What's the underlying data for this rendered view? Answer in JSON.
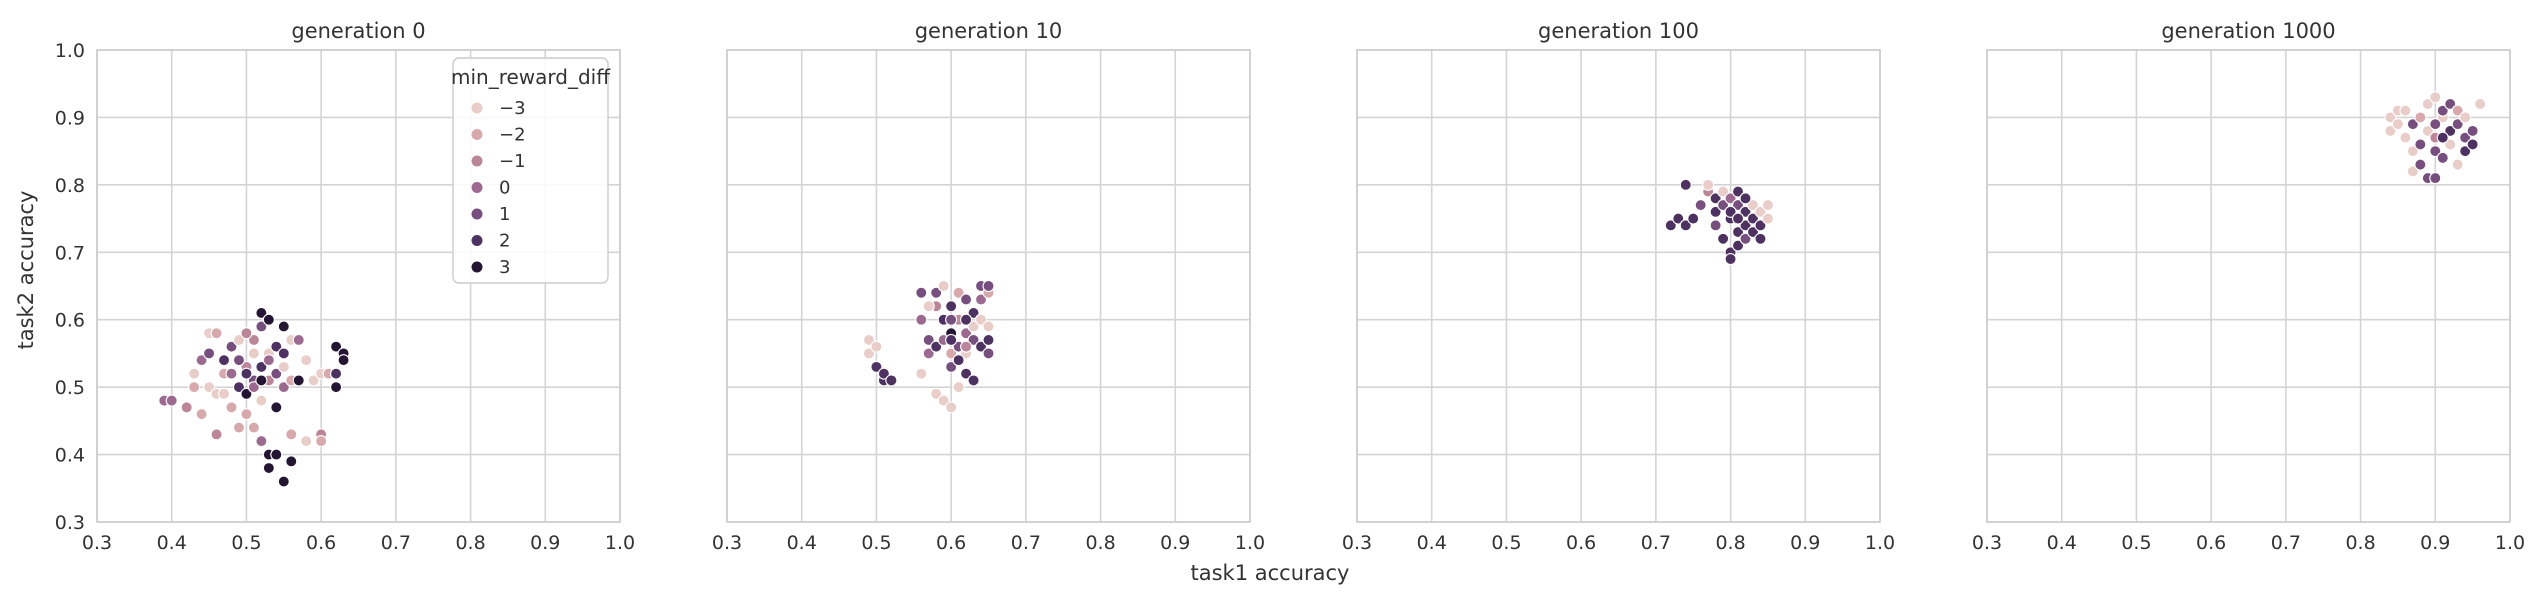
{
  "figure": {
    "xlabel": "task1 accuracy",
    "ylabel": "task2 accuracy"
  },
  "legend": {
    "title": "min_reward_diff",
    "entries": [
      {
        "label": "−3",
        "value": -3,
        "color": "#e8cdc9"
      },
      {
        "label": "−2",
        "value": -2,
        "color": "#d7a9ad"
      },
      {
        "label": "−1",
        "value": -1,
        "color": "#bc8699"
      },
      {
        "label": "0",
        "value": 0,
        "color": "#9c6a91"
      },
      {
        "label": "1",
        "value": 1,
        "color": "#764f7e"
      },
      {
        "label": "2",
        "value": 2,
        "color": "#4d3160"
      },
      {
        "label": "3",
        "value": 3,
        "color": "#241633"
      }
    ]
  },
  "chart_data": [
    {
      "type": "scatter",
      "title": "generation 0",
      "xlim": [
        0.3,
        1.0
      ],
      "ylim": [
        0.3,
        1.0
      ],
      "xticks": [
        "0.3",
        "0.4",
        "0.5",
        "0.6",
        "0.7",
        "0.8",
        "0.9",
        "1.0"
      ],
      "yticks": [
        "0.3",
        "0.4",
        "0.5",
        "0.6",
        "0.7",
        "0.8",
        "0.9",
        "1.0"
      ],
      "grid": true,
      "points": [
        {
          "x": 0.39,
          "y": 0.48,
          "hue": 0
        },
        {
          "x": 0.4,
          "y": 0.48,
          "hue": 0
        },
        {
          "x": 0.42,
          "y": 0.47,
          "hue": -1
        },
        {
          "x": 0.43,
          "y": 0.52,
          "hue": -3
        },
        {
          "x": 0.43,
          "y": 0.5,
          "hue": -2
        },
        {
          "x": 0.44,
          "y": 0.54,
          "hue": 0
        },
        {
          "x": 0.44,
          "y": 0.46,
          "hue": -2
        },
        {
          "x": 0.45,
          "y": 0.58,
          "hue": -3
        },
        {
          "x": 0.45,
          "y": 0.5,
          "hue": -3
        },
        {
          "x": 0.45,
          "y": 0.55,
          "hue": 1
        },
        {
          "x": 0.46,
          "y": 0.49,
          "hue": -3
        },
        {
          "x": 0.46,
          "y": 0.43,
          "hue": -1
        },
        {
          "x": 0.46,
          "y": 0.58,
          "hue": -2
        },
        {
          "x": 0.47,
          "y": 0.52,
          "hue": -2
        },
        {
          "x": 0.47,
          "y": 0.49,
          "hue": -3
        },
        {
          "x": 0.47,
          "y": 0.54,
          "hue": 2
        },
        {
          "x": 0.48,
          "y": 0.56,
          "hue": 1
        },
        {
          "x": 0.48,
          "y": 0.47,
          "hue": -2
        },
        {
          "x": 0.48,
          "y": 0.52,
          "hue": 0
        },
        {
          "x": 0.49,
          "y": 0.44,
          "hue": -2
        },
        {
          "x": 0.49,
          "y": 0.5,
          "hue": 2
        },
        {
          "x": 0.49,
          "y": 0.57,
          "hue": -3
        },
        {
          "x": 0.5,
          "y": 0.53,
          "hue": -1
        },
        {
          "x": 0.5,
          "y": 0.49,
          "hue": 3
        },
        {
          "x": 0.5,
          "y": 0.46,
          "hue": -2
        },
        {
          "x": 0.51,
          "y": 0.55,
          "hue": -3
        },
        {
          "x": 0.51,
          "y": 0.51,
          "hue": 1
        },
        {
          "x": 0.51,
          "y": 0.44,
          "hue": -2
        },
        {
          "x": 0.51,
          "y": 0.57,
          "hue": -1
        },
        {
          "x": 0.52,
          "y": 0.61,
          "hue": 3
        },
        {
          "x": 0.52,
          "y": 0.53,
          "hue": 2
        },
        {
          "x": 0.52,
          "y": 0.48,
          "hue": -3
        },
        {
          "x": 0.52,
          "y": 0.59,
          "hue": 1
        },
        {
          "x": 0.52,
          "y": 0.42,
          "hue": 0
        },
        {
          "x": 0.53,
          "y": 0.6,
          "hue": 3
        },
        {
          "x": 0.53,
          "y": 0.51,
          "hue": -1
        },
        {
          "x": 0.53,
          "y": 0.55,
          "hue": -3
        },
        {
          "x": 0.53,
          "y": 0.4,
          "hue": 3
        },
        {
          "x": 0.53,
          "y": 0.38,
          "hue": 3
        },
        {
          "x": 0.54,
          "y": 0.56,
          "hue": 2
        },
        {
          "x": 0.54,
          "y": 0.52,
          "hue": 1
        },
        {
          "x": 0.54,
          "y": 0.47,
          "hue": 3
        },
        {
          "x": 0.54,
          "y": 0.4,
          "hue": 3
        },
        {
          "x": 0.55,
          "y": 0.59,
          "hue": 3
        },
        {
          "x": 0.55,
          "y": 0.53,
          "hue": -3
        },
        {
          "x": 0.55,
          "y": 0.5,
          "hue": 0
        },
        {
          "x": 0.55,
          "y": 0.36,
          "hue": 3
        },
        {
          "x": 0.55,
          "y": 0.55,
          "hue": 2
        },
        {
          "x": 0.56,
          "y": 0.51,
          "hue": -2
        },
        {
          "x": 0.56,
          "y": 0.39,
          "hue": 3
        },
        {
          "x": 0.56,
          "y": 0.43,
          "hue": -2
        },
        {
          "x": 0.56,
          "y": 0.57,
          "hue": -3
        },
        {
          "x": 0.57,
          "y": 0.51,
          "hue": 3
        },
        {
          "x": 0.57,
          "y": 0.57,
          "hue": 0
        },
        {
          "x": 0.58,
          "y": 0.42,
          "hue": -3
        },
        {
          "x": 0.58,
          "y": 0.54,
          "hue": -3
        },
        {
          "x": 0.59,
          "y": 0.51,
          "hue": -3
        },
        {
          "x": 0.6,
          "y": 0.52,
          "hue": -3
        },
        {
          "x": 0.6,
          "y": 0.43,
          "hue": -1
        },
        {
          "x": 0.6,
          "y": 0.42,
          "hue": -2
        },
        {
          "x": 0.61,
          "y": 0.52,
          "hue": -2
        },
        {
          "x": 0.62,
          "y": 0.56,
          "hue": 3
        },
        {
          "x": 0.62,
          "y": 0.5,
          "hue": 3
        },
        {
          "x": 0.62,
          "y": 0.52,
          "hue": 2
        },
        {
          "x": 0.63,
          "y": 0.55,
          "hue": 3
        },
        {
          "x": 0.63,
          "y": 0.54,
          "hue": 3
        },
        {
          "x": 0.5,
          "y": 0.52,
          "hue": 2
        },
        {
          "x": 0.51,
          "y": 0.5,
          "hue": 0
        },
        {
          "x": 0.52,
          "y": 0.51,
          "hue": 3
        },
        {
          "x": 0.53,
          "y": 0.54,
          "hue": 0
        },
        {
          "x": 0.49,
          "y": 0.54,
          "hue": 1
        },
        {
          "x": 0.5,
          "y": 0.58,
          "hue": -1
        }
      ]
    },
    {
      "type": "scatter",
      "title": "generation 10",
      "xlim": [
        0.3,
        1.0
      ],
      "ylim": [
        0.3,
        1.0
      ],
      "xticks": [
        "0.3",
        "0.4",
        "0.5",
        "0.6",
        "0.7",
        "0.8",
        "0.9",
        "1.0"
      ],
      "grid": true,
      "points": [
        {
          "x": 0.49,
          "y": 0.57,
          "hue": -3
        },
        {
          "x": 0.49,
          "y": 0.55,
          "hue": -3
        },
        {
          "x": 0.5,
          "y": 0.56,
          "hue": -3
        },
        {
          "x": 0.5,
          "y": 0.53,
          "hue": 2
        },
        {
          "x": 0.51,
          "y": 0.51,
          "hue": 2
        },
        {
          "x": 0.51,
          "y": 0.52,
          "hue": 2
        },
        {
          "x": 0.52,
          "y": 0.51,
          "hue": 2
        },
        {
          "x": 0.56,
          "y": 0.64,
          "hue": 1
        },
        {
          "x": 0.56,
          "y": 0.6,
          "hue": 0
        },
        {
          "x": 0.56,
          "y": 0.52,
          "hue": -3
        },
        {
          "x": 0.57,
          "y": 0.57,
          "hue": 1
        },
        {
          "x": 0.57,
          "y": 0.55,
          "hue": 0
        },
        {
          "x": 0.58,
          "y": 0.62,
          "hue": -1
        },
        {
          "x": 0.58,
          "y": 0.49,
          "hue": -3
        },
        {
          "x": 0.58,
          "y": 0.56,
          "hue": 2
        },
        {
          "x": 0.58,
          "y": 0.64,
          "hue": 1
        },
        {
          "x": 0.59,
          "y": 0.48,
          "hue": -3
        },
        {
          "x": 0.59,
          "y": 0.6,
          "hue": 2
        },
        {
          "x": 0.59,
          "y": 0.57,
          "hue": 0
        },
        {
          "x": 0.59,
          "y": 0.65,
          "hue": -3
        },
        {
          "x": 0.6,
          "y": 0.47,
          "hue": -3
        },
        {
          "x": 0.6,
          "y": 0.53,
          "hue": 1
        },
        {
          "x": 0.6,
          "y": 0.62,
          "hue": 2
        },
        {
          "x": 0.6,
          "y": 0.58,
          "hue": 3
        },
        {
          "x": 0.6,
          "y": 0.55,
          "hue": -2
        },
        {
          "x": 0.61,
          "y": 0.64,
          "hue": -2
        },
        {
          "x": 0.61,
          "y": 0.5,
          "hue": -3
        },
        {
          "x": 0.61,
          "y": 0.56,
          "hue": 1
        },
        {
          "x": 0.61,
          "y": 0.6,
          "hue": -1
        },
        {
          "x": 0.62,
          "y": 0.52,
          "hue": 2
        },
        {
          "x": 0.62,
          "y": 0.58,
          "hue": 0
        },
        {
          "x": 0.62,
          "y": 0.63,
          "hue": 1
        },
        {
          "x": 0.62,
          "y": 0.55,
          "hue": -3
        },
        {
          "x": 0.63,
          "y": 0.59,
          "hue": -3
        },
        {
          "x": 0.63,
          "y": 0.51,
          "hue": 2
        },
        {
          "x": 0.63,
          "y": 0.57,
          "hue": 1
        },
        {
          "x": 0.63,
          "y": 0.61,
          "hue": 2
        },
        {
          "x": 0.64,
          "y": 0.65,
          "hue": 1
        },
        {
          "x": 0.64,
          "y": 0.56,
          "hue": 2
        },
        {
          "x": 0.64,
          "y": 0.63,
          "hue": 0
        },
        {
          "x": 0.64,
          "y": 0.6,
          "hue": -3
        },
        {
          "x": 0.65,
          "y": 0.64,
          "hue": -2
        },
        {
          "x": 0.65,
          "y": 0.57,
          "hue": 2
        },
        {
          "x": 0.65,
          "y": 0.55,
          "hue": 1
        },
        {
          "x": 0.65,
          "y": 0.59,
          "hue": -3
        },
        {
          "x": 0.65,
          "y": 0.65,
          "hue": 1
        },
        {
          "x": 0.6,
          "y": 0.57,
          "hue": 2
        },
        {
          "x": 0.61,
          "y": 0.54,
          "hue": 2
        },
        {
          "x": 0.62,
          "y": 0.56,
          "hue": -1
        },
        {
          "x": 0.6,
          "y": 0.6,
          "hue": 1
        },
        {
          "x": 0.57,
          "y": 0.62,
          "hue": -3
        },
        {
          "x": 0.62,
          "y": 0.6,
          "hue": 2
        }
      ]
    },
    {
      "type": "scatter",
      "title": "generation 100",
      "xlim": [
        0.3,
        1.0
      ],
      "ylim": [
        0.3,
        1.0
      ],
      "xticks": [
        "0.3",
        "0.4",
        "0.5",
        "0.6",
        "0.7",
        "0.8",
        "0.9",
        "1.0"
      ],
      "grid": true,
      "points": [
        {
          "x": 0.72,
          "y": 0.74,
          "hue": 2
        },
        {
          "x": 0.73,
          "y": 0.75,
          "hue": 2
        },
        {
          "x": 0.74,
          "y": 0.74,
          "hue": 2
        },
        {
          "x": 0.74,
          "y": 0.8,
          "hue": 2
        },
        {
          "x": 0.75,
          "y": 0.75,
          "hue": 2
        },
        {
          "x": 0.76,
          "y": 0.77,
          "hue": 1
        },
        {
          "x": 0.77,
          "y": 0.79,
          "hue": -1
        },
        {
          "x": 0.77,
          "y": 0.8,
          "hue": -3
        },
        {
          "x": 0.78,
          "y": 0.78,
          "hue": 2
        },
        {
          "x": 0.78,
          "y": 0.74,
          "hue": 1
        },
        {
          "x": 0.78,
          "y": 0.76,
          "hue": 2
        },
        {
          "x": 0.79,
          "y": 0.72,
          "hue": 2
        },
        {
          "x": 0.79,
          "y": 0.77,
          "hue": 1
        },
        {
          "x": 0.79,
          "y": 0.79,
          "hue": -3
        },
        {
          "x": 0.8,
          "y": 0.7,
          "hue": 2
        },
        {
          "x": 0.8,
          "y": 0.69,
          "hue": 2
        },
        {
          "x": 0.8,
          "y": 0.75,
          "hue": 2
        },
        {
          "x": 0.8,
          "y": 0.78,
          "hue": 0
        },
        {
          "x": 0.81,
          "y": 0.73,
          "hue": 2
        },
        {
          "x": 0.81,
          "y": 0.77,
          "hue": 1
        },
        {
          "x": 0.81,
          "y": 0.71,
          "hue": 2
        },
        {
          "x": 0.81,
          "y": 0.79,
          "hue": 2
        },
        {
          "x": 0.82,
          "y": 0.74,
          "hue": 2
        },
        {
          "x": 0.82,
          "y": 0.76,
          "hue": 2
        },
        {
          "x": 0.82,
          "y": 0.72,
          "hue": 1
        },
        {
          "x": 0.83,
          "y": 0.75,
          "hue": 2
        },
        {
          "x": 0.83,
          "y": 0.73,
          "hue": 2
        },
        {
          "x": 0.83,
          "y": 0.77,
          "hue": -3
        },
        {
          "x": 0.84,
          "y": 0.76,
          "hue": -3
        },
        {
          "x": 0.84,
          "y": 0.72,
          "hue": 2
        },
        {
          "x": 0.84,
          "y": 0.74,
          "hue": 2
        },
        {
          "x": 0.85,
          "y": 0.75,
          "hue": -3
        },
        {
          "x": 0.85,
          "y": 0.77,
          "hue": -3
        },
        {
          "x": 0.8,
          "y": 0.76,
          "hue": 2
        },
        {
          "x": 0.81,
          "y": 0.75,
          "hue": 2
        },
        {
          "x": 0.82,
          "y": 0.78,
          "hue": 2
        }
      ]
    },
    {
      "type": "scatter",
      "title": "generation 1000",
      "xlim": [
        0.3,
        1.0
      ],
      "ylim": [
        0.3,
        1.0
      ],
      "xticks": [
        "0.3",
        "0.4",
        "0.5",
        "0.6",
        "0.7",
        "0.8",
        "0.9",
        "1.0"
      ],
      "grid": true,
      "points": [
        {
          "x": 0.84,
          "y": 0.9,
          "hue": -3
        },
        {
          "x": 0.84,
          "y": 0.88,
          "hue": -3
        },
        {
          "x": 0.85,
          "y": 0.91,
          "hue": -3
        },
        {
          "x": 0.85,
          "y": 0.89,
          "hue": -3
        },
        {
          "x": 0.86,
          "y": 0.87,
          "hue": -3
        },
        {
          "x": 0.86,
          "y": 0.91,
          "hue": -3
        },
        {
          "x": 0.87,
          "y": 0.85,
          "hue": -3
        },
        {
          "x": 0.87,
          "y": 0.82,
          "hue": -3
        },
        {
          "x": 0.87,
          "y": 0.89,
          "hue": 1
        },
        {
          "x": 0.88,
          "y": 0.86,
          "hue": 1
        },
        {
          "x": 0.88,
          "y": 0.83,
          "hue": 1
        },
        {
          "x": 0.88,
          "y": 0.9,
          "hue": -2
        },
        {
          "x": 0.89,
          "y": 0.81,
          "hue": 1
        },
        {
          "x": 0.89,
          "y": 0.88,
          "hue": -3
        },
        {
          "x": 0.89,
          "y": 0.92,
          "hue": -3
        },
        {
          "x": 0.9,
          "y": 0.81,
          "hue": 1
        },
        {
          "x": 0.9,
          "y": 0.85,
          "hue": 1
        },
        {
          "x": 0.9,
          "y": 0.93,
          "hue": -3
        },
        {
          "x": 0.9,
          "y": 0.87,
          "hue": -1
        },
        {
          "x": 0.91,
          "y": 0.9,
          "hue": -3
        },
        {
          "x": 0.91,
          "y": 0.84,
          "hue": 1
        },
        {
          "x": 0.91,
          "y": 0.91,
          "hue": 1
        },
        {
          "x": 0.92,
          "y": 0.88,
          "hue": 2
        },
        {
          "x": 0.92,
          "y": 0.92,
          "hue": 1
        },
        {
          "x": 0.92,
          "y": 0.86,
          "hue": -3
        },
        {
          "x": 0.93,
          "y": 0.89,
          "hue": 1
        },
        {
          "x": 0.93,
          "y": 0.83,
          "hue": -3
        },
        {
          "x": 0.93,
          "y": 0.91,
          "hue": -2
        },
        {
          "x": 0.94,
          "y": 0.87,
          "hue": 1
        },
        {
          "x": 0.94,
          "y": 0.85,
          "hue": 2
        },
        {
          "x": 0.94,
          "y": 0.9,
          "hue": -3
        },
        {
          "x": 0.95,
          "y": 0.88,
          "hue": 1
        },
        {
          "x": 0.95,
          "y": 0.86,
          "hue": 2
        },
        {
          "x": 0.96,
          "y": 0.92,
          "hue": -3
        },
        {
          "x": 0.91,
          "y": 0.87,
          "hue": 2
        },
        {
          "x": 0.9,
          "y": 0.89,
          "hue": 1
        }
      ]
    }
  ]
}
